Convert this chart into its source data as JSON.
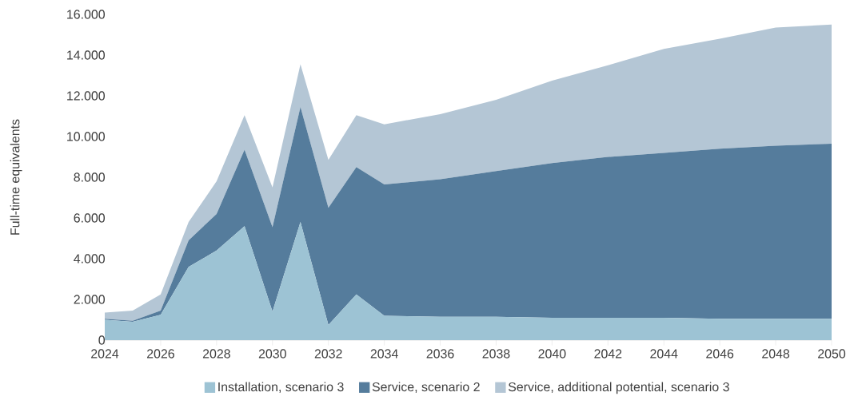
{
  "chart_data": {
    "type": "area",
    "stacked": true,
    "ylabel": "Full-time equivalents",
    "x": [
      2024,
      2025,
      2026,
      2027,
      2028,
      2029,
      2030,
      2031,
      2032,
      2033,
      2034,
      2036,
      2038,
      2040,
      2042,
      2044,
      2046,
      2048,
      2050
    ],
    "series": [
      {
        "name": "Installation, scenario 3",
        "color": "#9dc3d4",
        "values": [
          1000,
          900,
          1250,
          3600,
          4400,
          5600,
          1400,
          5800,
          750,
          2250,
          1200,
          1150,
          1150,
          1100,
          1100,
          1100,
          1050,
          1050,
          1050
        ]
      },
      {
        "name": "Service, scenario 2",
        "color": "#557c9c",
        "values": [
          50,
          50,
          200,
          1300,
          1800,
          3750,
          4150,
          5650,
          5750,
          6250,
          6450,
          6750,
          7150,
          7600,
          7900,
          8100,
          8350,
          8500,
          8600
        ]
      },
      {
        "name": "Service, additional potential, scenario 3",
        "color": "#b4c6d5",
        "values": [
          300,
          500,
          800,
          900,
          1600,
          1700,
          1950,
          2100,
          2350,
          2550,
          2950,
          3200,
          3500,
          4050,
          4500,
          5100,
          5400,
          5800,
          5850
        ]
      }
    ],
    "xlim": [
      2024,
      2050
    ],
    "ylim": [
      0,
      16000
    ],
    "xticks": [
      2024,
      2026,
      2028,
      2030,
      2032,
      2034,
      2036,
      2038,
      2040,
      2042,
      2044,
      2046,
      2048,
      2050
    ],
    "yticks": [
      0,
      {
        "value": 2000,
        "label": "2.000"
      },
      {
        "value": 4000,
        "label": "4.000"
      },
      {
        "value": 6000,
        "label": "6.000"
      },
      {
        "value": 8000,
        "label": "8.000"
      },
      {
        "value": 10000,
        "label": "10.000"
      },
      {
        "value": 12000,
        "label": "12.000"
      },
      {
        "value": 14000,
        "label": "14.000"
      },
      {
        "value": 16000,
        "label": "16.000"
      }
    ],
    "grid": false,
    "legend": "bottom"
  }
}
